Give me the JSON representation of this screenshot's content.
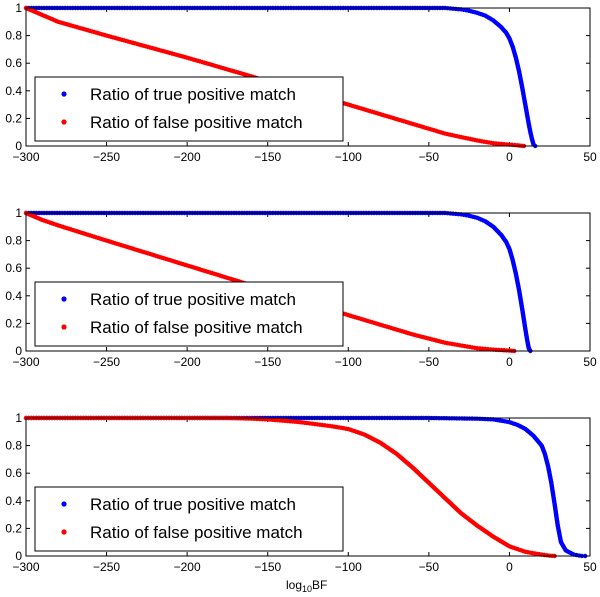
{
  "figure": {
    "xlabel_main": "log",
    "xlabel_sub": "10",
    "xlabel_suffix": "BF"
  },
  "chart_data": [
    {
      "type": "scatter",
      "xlim": [
        -300,
        50
      ],
      "ylim": [
        0,
        1
      ],
      "xticks": [
        -300,
        -250,
        -200,
        -150,
        -100,
        -50,
        0,
        50
      ],
      "xtick_labels": [
        "−300",
        "−250",
        "−200",
        "−150",
        "−100",
        "−50",
        "0",
        "50"
      ],
      "yticks": [
        0,
        0.2,
        0.4,
        0.6,
        0.8,
        1
      ],
      "ytick_labels": [
        "0",
        "0.2",
        "0.4",
        "0.6",
        "0.8",
        "1"
      ],
      "legend_position": "lower-left",
      "series": [
        {
          "name": "Ratio of true positive match",
          "color": "#0000ff",
          "points": [
            [
              -300,
              1
            ],
            [
              -250,
              1
            ],
            [
              -200,
              1
            ],
            [
              -150,
              1
            ],
            [
              -100,
              1
            ],
            [
              -60,
              1
            ],
            [
              -40,
              1
            ],
            [
              -30,
              0.99
            ],
            [
              -25,
              0.98
            ],
            [
              -20,
              0.965
            ],
            [
              -15,
              0.945
            ],
            [
              -10,
              0.91
            ],
            [
              -5,
              0.86
            ],
            [
              -2,
              0.82
            ],
            [
              0,
              0.78
            ],
            [
              2,
              0.72
            ],
            [
              4,
              0.64
            ],
            [
              6,
              0.54
            ],
            [
              8,
              0.42
            ],
            [
              10,
              0.29
            ],
            [
              12,
              0.16
            ],
            [
              13,
              0.1
            ],
            [
              14,
              0.05
            ],
            [
              15,
              0.01
            ],
            [
              16,
              0
            ]
          ]
        },
        {
          "name": "Ratio of false positive match",
          "color": "#ff0000",
          "points": [
            [
              -300,
              1
            ],
            [
              -290,
              0.95
            ],
            [
              -280,
              0.9
            ],
            [
              -250,
              0.8
            ],
            [
              -200,
              0.64
            ],
            [
              -150,
              0.47
            ],
            [
              -100,
              0.3
            ],
            [
              -80,
              0.23
            ],
            [
              -60,
              0.16
            ],
            [
              -40,
              0.09
            ],
            [
              -20,
              0.04
            ],
            [
              -10,
              0.02
            ],
            [
              0,
              0.01
            ],
            [
              5,
              0.005
            ],
            [
              9,
              0
            ]
          ]
        }
      ]
    },
    {
      "type": "scatter",
      "xlim": [
        -300,
        50
      ],
      "ylim": [
        0,
        1
      ],
      "xticks": [
        -300,
        -250,
        -200,
        -150,
        -100,
        -50,
        0,
        50
      ],
      "xtick_labels": [
        "−300",
        "−250",
        "−200",
        "−150",
        "−100",
        "−50",
        "0",
        "50"
      ],
      "yticks": [
        0,
        0.2,
        0.4,
        0.6,
        0.8,
        1
      ],
      "ytick_labels": [
        "0",
        "0.2",
        "0.4",
        "0.6",
        "0.8",
        "1"
      ],
      "legend_position": "lower-left",
      "series": [
        {
          "name": "Ratio of true positive match",
          "color": "#0000ff",
          "points": [
            [
              -300,
              1
            ],
            [
              -250,
              1
            ],
            [
              -200,
              1
            ],
            [
              -150,
              1
            ],
            [
              -100,
              1
            ],
            [
              -60,
              1
            ],
            [
              -40,
              1
            ],
            [
              -30,
              0.99
            ],
            [
              -25,
              0.98
            ],
            [
              -20,
              0.965
            ],
            [
              -15,
              0.94
            ],
            [
              -10,
              0.9
            ],
            [
              -5,
              0.84
            ],
            [
              -2,
              0.79
            ],
            [
              0,
              0.74
            ],
            [
              2,
              0.66
            ],
            [
              4,
              0.56
            ],
            [
              6,
              0.44
            ],
            [
              8,
              0.3
            ],
            [
              10,
              0.15
            ],
            [
              11,
              0.08
            ],
            [
              12,
              0.02
            ],
            [
              13,
              0
            ]
          ]
        },
        {
          "name": "Ratio of false positive match",
          "color": "#ff0000",
          "points": [
            [
              -300,
              1
            ],
            [
              -290,
              0.95
            ],
            [
              -280,
              0.91
            ],
            [
              -250,
              0.8
            ],
            [
              -200,
              0.62
            ],
            [
              -150,
              0.44
            ],
            [
              -100,
              0.26
            ],
            [
              -80,
              0.19
            ],
            [
              -60,
              0.12
            ],
            [
              -40,
              0.06
            ],
            [
              -20,
              0.02
            ],
            [
              -10,
              0.01
            ],
            [
              0,
              0.003
            ],
            [
              3,
              0
            ]
          ]
        }
      ]
    },
    {
      "type": "scatter",
      "xlim": [
        -300,
        50
      ],
      "ylim": [
        0,
        1
      ],
      "xticks": [
        -300,
        -250,
        -200,
        -150,
        -100,
        -50,
        0,
        50
      ],
      "xtick_labels": [
        "−300",
        "−250",
        "−200",
        "−150",
        "−100",
        "−50",
        "0",
        "50"
      ],
      "yticks": [
        0,
        0.2,
        0.4,
        0.6,
        0.8,
        1
      ],
      "ytick_labels": [
        "0",
        "0.2",
        "0.4",
        "0.6",
        "0.8",
        "1"
      ],
      "legend_position": "lower-left",
      "series": [
        {
          "name": "Ratio of true positive match",
          "color": "#0000ff",
          "points": [
            [
              -300,
              1
            ],
            [
              -250,
              1
            ],
            [
              -200,
              1
            ],
            [
              -150,
              1
            ],
            [
              -100,
              1
            ],
            [
              -50,
              1
            ],
            [
              -20,
              0.995
            ],
            [
              -10,
              0.99
            ],
            [
              0,
              0.97
            ],
            [
              5,
              0.95
            ],
            [
              10,
              0.92
            ],
            [
              15,
              0.87
            ],
            [
              20,
              0.8
            ],
            [
              22,
              0.74
            ],
            [
              24,
              0.65
            ],
            [
              26,
              0.53
            ],
            [
              28,
              0.38
            ],
            [
              30,
              0.22
            ],
            [
              32,
              0.1
            ],
            [
              35,
              0.04
            ],
            [
              40,
              0.01
            ],
            [
              45,
              0
            ],
            [
              47,
              0
            ]
          ]
        },
        {
          "name": "Ratio of false positive match",
          "color": "#ff0000",
          "points": [
            [
              -300,
              1
            ],
            [
              -250,
              1
            ],
            [
              -200,
              1
            ],
            [
              -175,
              1
            ],
            [
              -160,
              0.995
            ],
            [
              -150,
              0.99
            ],
            [
              -130,
              0.97
            ],
            [
              -110,
              0.94
            ],
            [
              -100,
              0.92
            ],
            [
              -90,
              0.88
            ],
            [
              -80,
              0.82
            ],
            [
              -70,
              0.74
            ],
            [
              -60,
              0.64
            ],
            [
              -50,
              0.53
            ],
            [
              -40,
              0.42
            ],
            [
              -30,
              0.31
            ],
            [
              -20,
              0.22
            ],
            [
              -10,
              0.14
            ],
            [
              0,
              0.07
            ],
            [
              10,
              0.03
            ],
            [
              20,
              0.01
            ],
            [
              25,
              0.002
            ],
            [
              28,
              0
            ]
          ]
        }
      ]
    }
  ]
}
